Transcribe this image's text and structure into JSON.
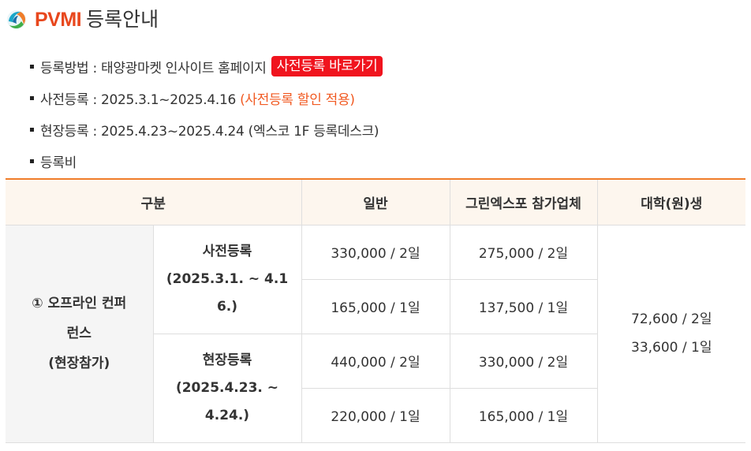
{
  "header": {
    "logo_icon": "pvmi-globe-logo",
    "brand": "PVMI",
    "title": "등록안내"
  },
  "info": {
    "method_label": "등록방법 : 태양광마켓 인사이트 홈페이지",
    "method_button": "사전등록 바로가기",
    "pre_label": "사전등록 : 2025.3.1~2025.4.16",
    "pre_note": "(사전등록 할인 적용)",
    "onsite_label": "현장등록 : 2025.4.23~2025.4.24 (엑스코 1F 등록데스크)",
    "fee_label": "등록비"
  },
  "table": {
    "headers": [
      "구분",
      "일반",
      "그린엑스포 참가업체",
      "대학(원)생"
    ],
    "group_label_lines": [
      "① 오프라인 컨퍼",
      "런스",
      "(현장참가)"
    ],
    "pre": {
      "label_lines": [
        "사전등록",
        "(2025.3.1. ~ 4.1",
        "6.)"
      ],
      "rows": [
        [
          "330,000 / 2일",
          "275,000 / 2일"
        ],
        [
          "165,000 / 1일",
          "137,500 / 1일"
        ]
      ]
    },
    "onsite": {
      "label_lines": [
        "현장등록",
        "(2025.4.23. ~",
        "4.24.)"
      ],
      "rows": [
        [
          "440,000 / 2일",
          "330,000 / 2일"
        ],
        [
          "220,000 / 1일",
          "165,000 / 1일"
        ]
      ]
    },
    "student_lines": [
      "72,600 / 2일",
      "33,600 / 1일"
    ]
  },
  "colors": {
    "brand": "#e8471d",
    "button_bg": "#f0141e",
    "note": "#f15a22",
    "table_top_border": "#f07d2a",
    "header_bg": "#fdf6ee",
    "row_head_bg": "#f5f5f5"
  }
}
